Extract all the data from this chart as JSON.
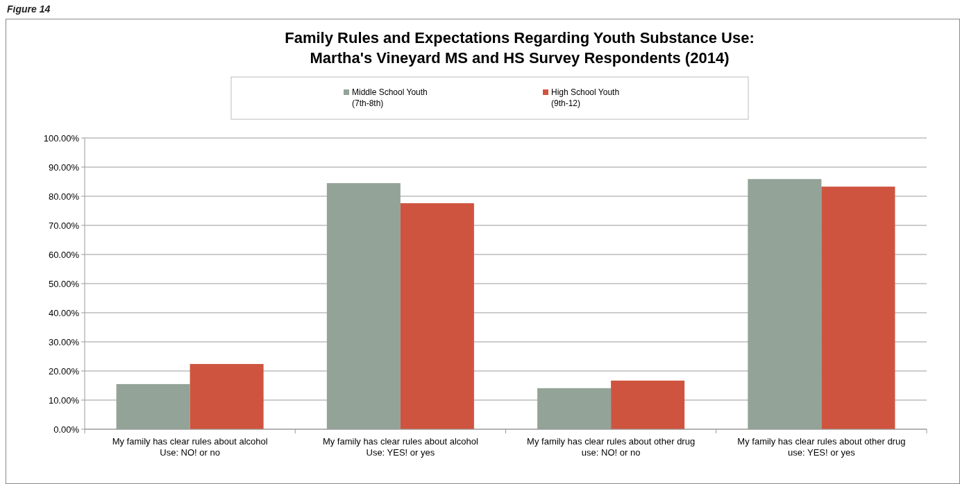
{
  "chart_data": {
    "type": "bar",
    "title": "Family Rules and Expectations Regarding Youth Substance Use:\nMartha's Vineyard MS and HS Survey Respondents (2014)",
    "annotations": [
      "Figure 14"
    ],
    "categories": [
      "My family has clear rules about alcohol Use: NO! or no",
      "My family has clear rules about alcohol Use: YES! or yes",
      "My family has clear rules about other drug use: NO! or no",
      "My family has clear rules about other drug use: YES! or yes"
    ],
    "series": [
      {
        "name": "Middle School Youth (7th-8th)",
        "color": "#93a398",
        "values": [
          15.5,
          84.5,
          14.1,
          85.9
        ]
      },
      {
        "name": "High School Youth (9th-12)",
        "color": "#cf543f",
        "values": [
          22.4,
          77.6,
          16.7,
          83.3
        ]
      }
    ],
    "ylim": [
      0,
      100
    ],
    "yticks": [
      {
        "value": 0,
        "label": "0.00%"
      },
      {
        "value": 10,
        "label": "10.00%"
      },
      {
        "value": 20,
        "label": "20.00%"
      },
      {
        "value": 30,
        "label": "30.00%"
      },
      {
        "value": 40,
        "label": "40.00%"
      },
      {
        "value": 50,
        "label": "50.00%"
      },
      {
        "value": 60,
        "label": "60.00%"
      },
      {
        "value": 70,
        "label": "70.00%"
      },
      {
        "value": 80,
        "label": "80.00%"
      },
      {
        "value": 90,
        "label": "90.00%"
      },
      {
        "value": 100,
        "label": "100.00%"
      }
    ],
    "grid": "y",
    "legend": "top"
  }
}
